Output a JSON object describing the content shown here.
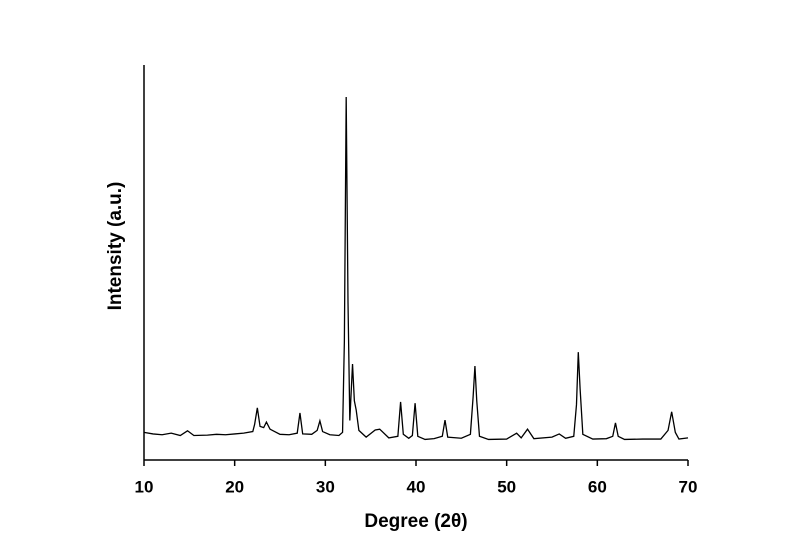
{
  "chart_data": {
    "type": "line",
    "xlabel": "Degree (2θ)",
    "ylabel": "Intensity (a.u.)",
    "xlim": [
      10,
      70
    ],
    "xticks": [
      10,
      20,
      30,
      40,
      50,
      60,
      70
    ],
    "ylim": [
      0,
      100
    ],
    "series": [
      {
        "color": "#000000",
        "x": [
          10,
          11,
          12,
          13,
          14,
          14.8,
          15.5,
          17,
          18,
          19,
          20,
          21,
          22,
          22.2,
          22.5,
          22.8,
          23.2,
          23.5,
          23.9,
          25,
          26,
          26.9,
          27.2,
          27.5,
          28.5,
          29.1,
          29.4,
          29.7,
          30.5,
          31.5,
          31.9,
          32.1,
          32.3,
          32.5,
          32.7,
          33.0,
          33.2,
          33.4,
          33.7,
          34.5,
          35.5,
          36,
          37,
          38,
          38.3,
          38.6,
          39.2,
          39.6,
          39.9,
          40.2,
          41,
          42,
          42.9,
          43.2,
          43.5,
          45,
          46,
          46.3,
          46.5,
          46.7,
          47,
          48,
          50,
          51.1,
          51.6,
          52.3,
          53,
          55,
          55.8,
          56.5,
          57.4,
          57.7,
          57.9,
          58.1,
          58.4,
          59.5,
          61,
          61.7,
          62,
          62.3,
          63,
          65,
          67,
          67.8,
          68.2,
          68.6,
          69,
          70
        ],
        "values": [
          7,
          6.6,
          6.4,
          6.8,
          6.2,
          7.4,
          6.2,
          6.3,
          6.5,
          6.4,
          6.6,
          6.8,
          7.2,
          9,
          13.2,
          8.5,
          8.2,
          9.6,
          7.8,
          6.5,
          6.4,
          6.8,
          11.9,
          6.6,
          6.5,
          7.5,
          9.9,
          7.2,
          6.4,
          6.2,
          7,
          30,
          91.9,
          40,
          10,
          24.3,
          15,
          12.7,
          7.5,
          5.8,
          7.6,
          7.8,
          5.6,
          6,
          14.7,
          6.5,
          5.5,
          6.2,
          14.4,
          6,
          5.2,
          5.4,
          6,
          10.1,
          5.8,
          5.5,
          6.5,
          16,
          23.8,
          15,
          6,
          5.2,
          5.3,
          6.8,
          5.6,
          7.8,
          5.4,
          5.8,
          6.6,
          5.5,
          6,
          14,
          27.3,
          18,
          6.5,
          5.3,
          5.4,
          6,
          9.4,
          6,
          5.2,
          5.3,
          5.3,
          7.5,
          12.2,
          7,
          5.3,
          5.6
        ]
      }
    ]
  }
}
